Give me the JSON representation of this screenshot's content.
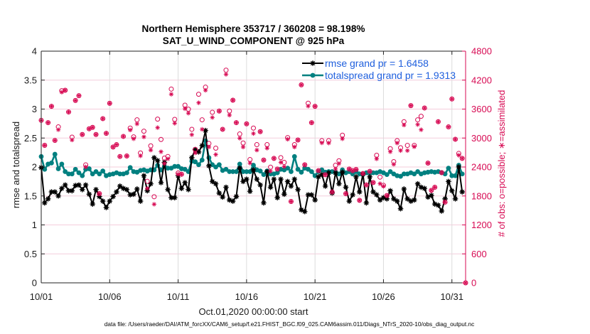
{
  "chart_data": {
    "type": "line",
    "title": [
      "Northern Hemisphere 353717 / 360208 = 98.198%",
      "SAT_U_WIND_COMPONENT @ 925 hPa"
    ],
    "xlabel": "Oct.01,2020 00:00:00 start",
    "ylabel_left": "rmse and totalspread",
    "ylabel_right": "# of obs: o=possible; ∗=assimilated",
    "footer": "data file: /Users/raeder/DAI/ATM_forcXX/CAM6_setup/f.e21.FHIST_BGC.f09_025.CAM6assim.011/Diags_NTrS_2020-10/obs_diag_output.nc",
    "x_start": "2020-10-01 00:00:00",
    "x_step_days": 0.25,
    "xlim_days": [
      0,
      31
    ],
    "xticks_days": [
      0,
      5,
      10,
      15,
      20,
      25,
      30
    ],
    "xticklabels": [
      "10/01",
      "10/06",
      "10/11",
      "10/16",
      "10/21",
      "10/26",
      "10/31"
    ],
    "ylim_left": [
      0,
      4
    ],
    "yticks_left": [
      0,
      0.5,
      1,
      1.5,
      2,
      2.5,
      3,
      3.5,
      4
    ],
    "yticklabels_left": [
      "0",
      "0.5",
      "1",
      "1.5",
      "2",
      "2.5",
      "3",
      "3.5",
      "4"
    ],
    "ylim_right": [
      0,
      4800
    ],
    "yticks_right": [
      0,
      600,
      1200,
      1800,
      2400,
      3000,
      3600,
      4200,
      4800
    ],
    "yticklabels_right": [
      "0",
      "600",
      "1200",
      "1800",
      "2400",
      "3000",
      "3600",
      "4200",
      "4800"
    ],
    "grid": true,
    "legend": {
      "placement": "top-right",
      "entries": [
        {
          "label": "rmse grand pr = 1.6458",
          "series": "rmse"
        },
        {
          "label": "totalspread grand pr = 1.9313",
          "series": "totalspread"
        }
      ]
    },
    "colors": {
      "rmse": "#000000",
      "totalspread": "#008080",
      "obs": "#d70a53",
      "legend_text": "#1f5fdd"
    },
    "series": [
      {
        "name": "rmse",
        "axis": "left",
        "marker": "filled-star",
        "values": [
          1.99,
          1.38,
          1.45,
          1.57,
          1.57,
          1.5,
          1.63,
          1.69,
          1.59,
          1.59,
          1.68,
          1.69,
          1.61,
          1.69,
          1.53,
          1.36,
          1.61,
          1.49,
          1.41,
          1.3,
          1.41,
          1.49,
          1.57,
          1.67,
          1.63,
          1.61,
          1.52,
          1.53,
          1.62,
          1.41,
          1.85,
          1.59,
          1.71,
          2.16,
          2.11,
          1.73,
          2.08,
          1.61,
          1.47,
          1.47,
          1.85,
          1.63,
          1.73,
          1.61,
          2.16,
          2.3,
          2.26,
          2.37,
          2.63,
          2.02,
          1.75,
          1.71,
          1.55,
          1.48,
          1.65,
          1.43,
          1.41,
          1.49,
          1.98,
          1.75,
          1.79,
          1.58,
          1.95,
          1.79,
          1.69,
          1.38,
          1.92,
          1.65,
          1.79,
          1.47,
          1.79,
          1.53,
          1.75,
          1.67,
          1.79,
          1.61,
          1.26,
          1.23,
          1.52,
          1.52,
          1.43,
          1.83,
          1.87,
          1.67,
          1.9,
          1.55,
          1.9,
          1.71,
          1.91,
          1.65,
          1.41,
          1.52,
          1.83,
          1.57,
          1.88,
          1.38,
          1.83,
          1.57,
          1.52,
          1.43,
          1.47,
          1.45,
          1.59,
          1.45,
          1.41,
          1.28,
          1.62,
          1.45,
          1.41,
          1.43,
          1.71,
          1.65,
          1.63,
          1.48,
          1.51,
          1.36,
          1.34,
          1.24,
          1.45,
          1.75,
          1.59,
          1.45,
          2.0,
          1.57,
          null
        ]
      },
      {
        "name": "totalspread",
        "axis": "left",
        "marker": "filled-circle",
        "values": [
          2.18,
          1.96,
          2.05,
          2.07,
          2.22,
          1.97,
          2.05,
          1.92,
          1.88,
          1.88,
          1.96,
          1.9,
          1.85,
          1.96,
          1.97,
          1.88,
          1.92,
          1.88,
          1.93,
          1.85,
          1.87,
          1.88,
          1.9,
          1.88,
          1.88,
          1.9,
          1.99,
          1.92,
          1.91,
          1.94,
          1.95,
          1.93,
          1.95,
          1.95,
          2.03,
          1.95,
          2.01,
          1.98,
          1.98,
          2.01,
          2.01,
          1.97,
          1.96,
          1.92,
          2.1,
          2.09,
          2.04,
          2.12,
          2.45,
          2.16,
          2.04,
          2.0,
          2.04,
          1.94,
          1.96,
          1.92,
          1.92,
          1.92,
          2.05,
          1.92,
          1.92,
          1.92,
          2.03,
          1.95,
          1.93,
          1.87,
          1.93,
          1.88,
          1.88,
          1.9,
          1.96,
          1.95,
          1.98,
          1.92,
          2.18,
          1.96,
          1.91,
          1.98,
          1.96,
          1.92,
          1.85,
          1.92,
          1.95,
          1.91,
          1.92,
          1.92,
          1.91,
          1.88,
          1.95,
          1.9,
          1.92,
          1.88,
          1.92,
          1.88,
          1.87,
          1.9,
          1.9,
          1.9,
          1.9,
          1.92,
          1.9,
          1.87,
          1.92,
          1.88,
          1.85,
          1.84,
          1.88,
          1.88,
          1.9,
          1.88,
          1.92,
          1.88,
          1.9,
          1.91,
          1.92,
          1.91,
          1.92,
          1.9,
          1.88,
          1.98,
          1.85,
          1.85,
          2.03,
          1.88,
          null
        ]
      },
      {
        "name": "# obs possible",
        "axis": "right",
        "marker": "open-circle",
        "line": false,
        "values": [
          3367,
          2849,
          3319,
          3657,
          2951,
          3231,
          3981,
          3990,
          3540,
          3019,
          3779,
          3877,
          3074,
          2445,
          3191,
          3221,
          3074,
          1848,
          3402,
          3098,
          3720,
          2814,
          2863,
          2618,
          3034,
          2628,
          3206,
          3024,
          3378,
          2691,
          3142,
          2103,
          2838,
          1784,
          3392,
          2971,
          2584,
          2618,
          4015,
          3387,
          2275,
          2250,
          3681,
          3598,
          3181,
          2765,
          3907,
          3378,
          4054,
          2887,
          3534,
          2790,
          3559,
          3181,
          4407,
          3559,
          3784,
          3319,
          3084,
          2897,
          3294,
          2554,
          3206,
          2863,
          3132,
          2544,
          2863,
          2397,
          2578,
          2358,
          2593,
          2495,
          3010,
          1686,
          2863,
          2960,
          4103,
          2446,
          3721,
          3319,
          3657,
          2324,
          2946,
          2240,
          2946,
          1882,
          2436,
          2529,
          3059,
          1848,
          2358,
          2324,
          2348,
          1710,
          2265,
          2029,
          2309,
          2078,
          2643,
          2191,
          2020,
          1809,
          2779,
          2510,
          2946,
          2799,
          3338,
          2848,
          3672,
          2848,
          3378,
          3451,
          3623,
          2481,
          1916,
          1980,
          3338,
          2284,
          1672,
          3231,
          3809,
          2975,
          2681,
          2578,
          0
        ]
      },
      {
        "name": "# obs assimilated",
        "axis": "right",
        "marker": "asterisk",
        "line": false,
        "values": [
          3367,
          2849,
          3319,
          3657,
          2951,
          3172,
          3950,
          3990,
          3540,
          2960,
          3779,
          3877,
          3074,
          2400,
          3191,
          3221,
          3074,
          1848,
          3402,
          3098,
          3720,
          2814,
          2863,
          2618,
          3034,
          2628,
          3166,
          2985,
          3294,
          2632,
          3024,
          1956,
          2750,
          1628,
          3216,
          2716,
          2471,
          2569,
          3907,
          3305,
          2250,
          2250,
          3607,
          3515,
          3069,
          2691,
          3730,
          3181,
          3990,
          2814,
          3426,
          2657,
          3559,
          3181,
          4319,
          3475,
          3784,
          3319,
          2996,
          2814,
          3294,
          2481,
          3093,
          2750,
          3132,
          2544,
          2790,
          2314,
          2578,
          2358,
          2495,
          2407,
          2975,
          1686,
          2814,
          2960,
          4103,
          2446,
          3662,
          3319,
          3657,
          2324,
          2900,
          2240,
          2897,
          1882,
          2358,
          2471,
          2985,
          1848,
          2358,
          2324,
          2348,
          1710,
          2265,
          2029,
          2309,
          2078,
          2569,
          2054,
          2000,
          1809,
          2716,
          2456,
          2897,
          2740,
          3269,
          2740,
          3672,
          2820,
          3279,
          3172,
          3623,
          2481,
          1916,
          1980,
          3338,
          2284,
          1672,
          3231,
          3809,
          2975,
          2643,
          2578,
          0
        ]
      }
    ]
  }
}
